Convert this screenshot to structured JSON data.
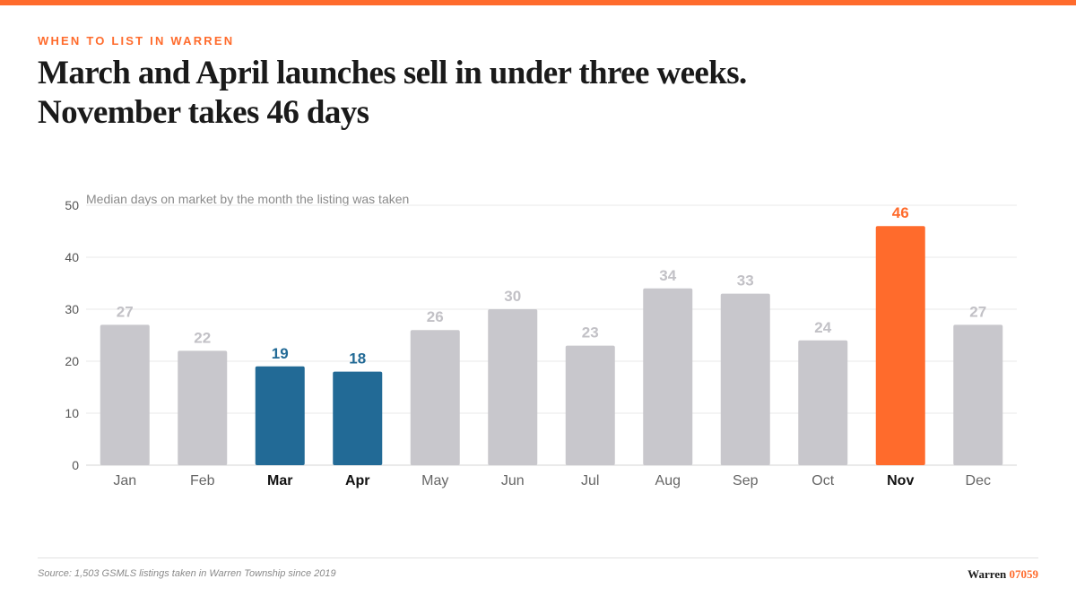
{
  "header": {
    "eyebrow": "WHEN TO LIST IN WARREN",
    "title_line1": "March and April launches sell in under three weeks.",
    "title_line2": "November takes 46 days"
  },
  "colors": {
    "accent": "#ff6b2c",
    "highlight": "#226a96",
    "muted_bar": "#c8c7cc",
    "muted_label": "#c2c1c6"
  },
  "chart_data": {
    "type": "bar",
    "title": "",
    "subtitle": "Median days on market by the month the listing was taken",
    "xlabel": "",
    "ylabel": "",
    "ylim": [
      0,
      50
    ],
    "yticks": [
      0,
      10,
      20,
      30,
      40,
      50
    ],
    "grid": true,
    "categories": [
      "Jan",
      "Feb",
      "Mar",
      "Apr",
      "May",
      "Jun",
      "Jul",
      "Aug",
      "Sep",
      "Oct",
      "Nov",
      "Dec"
    ],
    "values": [
      27,
      22,
      19,
      18,
      26,
      30,
      23,
      34,
      33,
      24,
      46,
      27
    ],
    "highlight": [
      "normal",
      "normal",
      "fast",
      "fast",
      "normal",
      "normal",
      "normal",
      "normal",
      "normal",
      "normal",
      "slow",
      "normal"
    ]
  },
  "footer": {
    "source": "Source: 1,503 GSMLS listings taken in Warren Township since 2019",
    "brand_name": "Warren",
    "brand_zip": "07059"
  }
}
